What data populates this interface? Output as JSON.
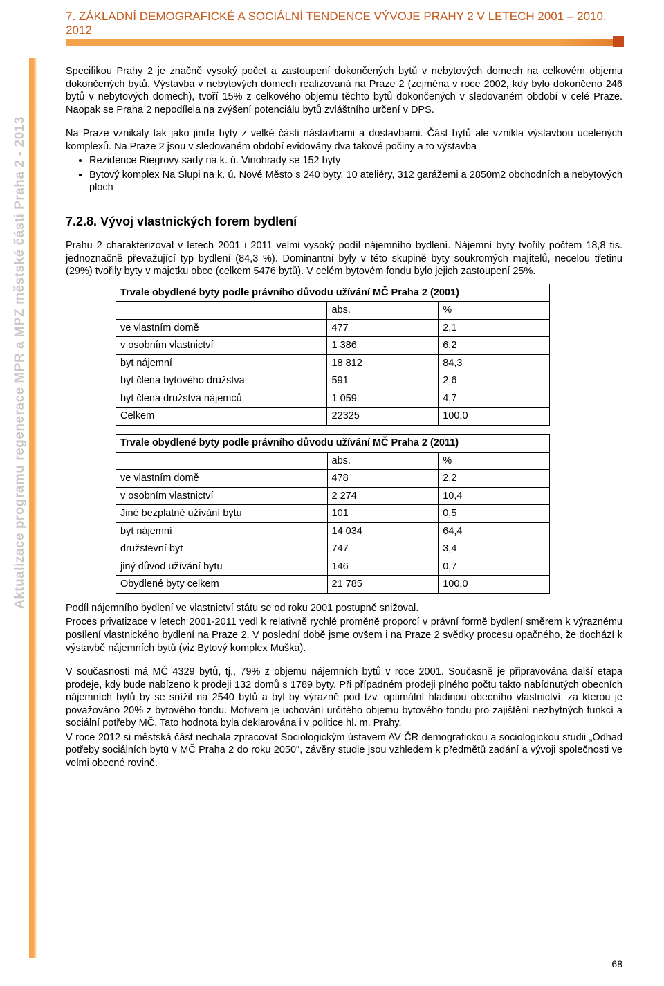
{
  "header": {
    "title": "7. ZÁKLADNÍ DEMOGRAFICKÉ A SOCIÁLNÍ TENDENCE VÝVOJE PRAHY 2 V LETECH 2001 – 2010, 2012"
  },
  "sidebar": {
    "text": "Aktualizace programu regenerace MPR a MPZ městské části Praha 2  -  2013"
  },
  "body": {
    "p1": "Specifikou Prahy 2 je značně vysoký počet a zastoupení dokončených bytů v nebytových domech na celkovém objemu dokončených bytů. Výstavba v nebytových domech realizovaná na Praze 2 (zejména v roce 2002, kdy bylo dokončeno 246 bytů v nebytových domech), tvoří 15% z celkového objemu těchto bytů dokončených v sledovaném období v celé Praze. Naopak se Praha 2 nepodílela na zvýšení potenciálu bytů zvláštního určení v DPS.",
    "p2": "Na Praze vznikaly tak jako jinde byty z velké části nástavbami a dostavbami. Část bytů ale vznikla výstavbou ucelených komplexů. Na Praze 2 jsou v sledovaném období evidovány dva takové počiny a to výstavba",
    "bullets": [
      "Rezidence Riegrovy sady na k. ú. Vinohrady se 152 byty",
      "Bytový komplex Na Slupi na k. ú. Nové Město s 240 byty, 10 ateliéry, 312 garážemi a 2850m2 obchodních a nebytových ploch"
    ],
    "sec_title": "7.2.8. Vývoj vlastnických forem bydlení",
    "p3": "Prahu 2 charakterizoval v letech 2001 i 2011 velmi vysoký podíl nájemního bydlení. Nájemní byty tvořily počtem 18,8 tis. jednoznačně převažující typ bydlení (84,3 %).  Dominantní byly v této skupině byty soukromých majitelů, necelou třetinu (29%) tvořily byty v majetku obce (celkem 5476 bytů). V celém bytovém fondu bylo jejich zastoupení 25%.",
    "p4": "Podíl nájemního bydlení ve vlastnictví státu se od roku 2001 postupně snižoval.",
    "p5": "Proces privatizace v letech 2001-2011 vedl k relativně rychlé proměně proporcí v právní formě bydlení směrem k výraznému posílení vlastnického bydlení na Praze 2. V poslední době jsme ovšem i na Praze 2 svědky procesu opačného, že dochází k výstavbě nájemních bytů (viz Bytový komplex Muška).",
    "p6": "V současnosti má MČ 4329 bytů, tj., 79% z objemu nájemních bytů v roce 2001. Současně je připravována další etapa prodeje, kdy bude nabízeno k prodeji 132 domů s 1789 byty. Při případném prodeji plného počtu takto nabídnutých obecních nájemních bytů by se snížil na 2540 bytů a byl by výrazně pod tzv. optimální hladinou obecního vlastnictví, za kterou je považováno 20% z bytového fondu. Motivem je uchování určitého objemu bytového fondu pro zajištění nezbytných funkcí a sociální potřeby MČ. Tato hodnota byla deklarována i v politice hl. m. Prahy.",
    "p7": "V roce 2012 si městská část nechala zpracovat Sociologickým ústavem AV ČR demografickou a sociologickou studii „Odhad potřeby sociálních bytů v MČ Praha 2 do roku 2050\", závěry studie jsou vzhledem k předmětů zadání a vývoji společnosti ve velmi obecné rovině."
  },
  "table1": {
    "title": "Trvale obydlené byty podle právního důvodu užívání MČ Praha 2 (2001)",
    "head": [
      "",
      "abs.",
      "%"
    ],
    "rows": [
      [
        "ve vlastním domě",
        "477",
        "2,1"
      ],
      [
        "v osobním vlastnictví",
        "1 386",
        "6,2"
      ],
      [
        "byt nájemní",
        "18 812",
        "84,3"
      ],
      [
        "byt člena bytového družstva",
        "591",
        "2,6"
      ],
      [
        "byt člena družstva nájemců",
        "1 059",
        "4,7"
      ],
      [
        "Celkem",
        "22325",
        "100,0"
      ]
    ],
    "col_widths": [
      "306px",
      "161px",
      "161px"
    ]
  },
  "table2": {
    "title": "Trvale obydlené byty podle právního důvodu užívání MČ Praha 2 (2011)",
    "head": [
      "",
      "abs.",
      "%"
    ],
    "rows": [
      [
        "ve vlastním domě",
        "478",
        "2,2"
      ],
      [
        "v osobním vlastnictví",
        "2 274",
        "10,4"
      ],
      [
        "Jiné bezplatné užívání bytu",
        "101",
        "0,5"
      ],
      [
        "byt nájemní",
        "14 034",
        "64,4"
      ],
      [
        "družstevní byt",
        "747",
        "3,4"
      ],
      [
        "jiný důvod užívání bytu",
        "146",
        "0,7"
      ],
      [
        "Obydlené byty celkem",
        "21 785",
        "100,0"
      ]
    ],
    "col_widths": [
      "306px",
      "161px",
      "161px"
    ]
  },
  "page_number": "68"
}
